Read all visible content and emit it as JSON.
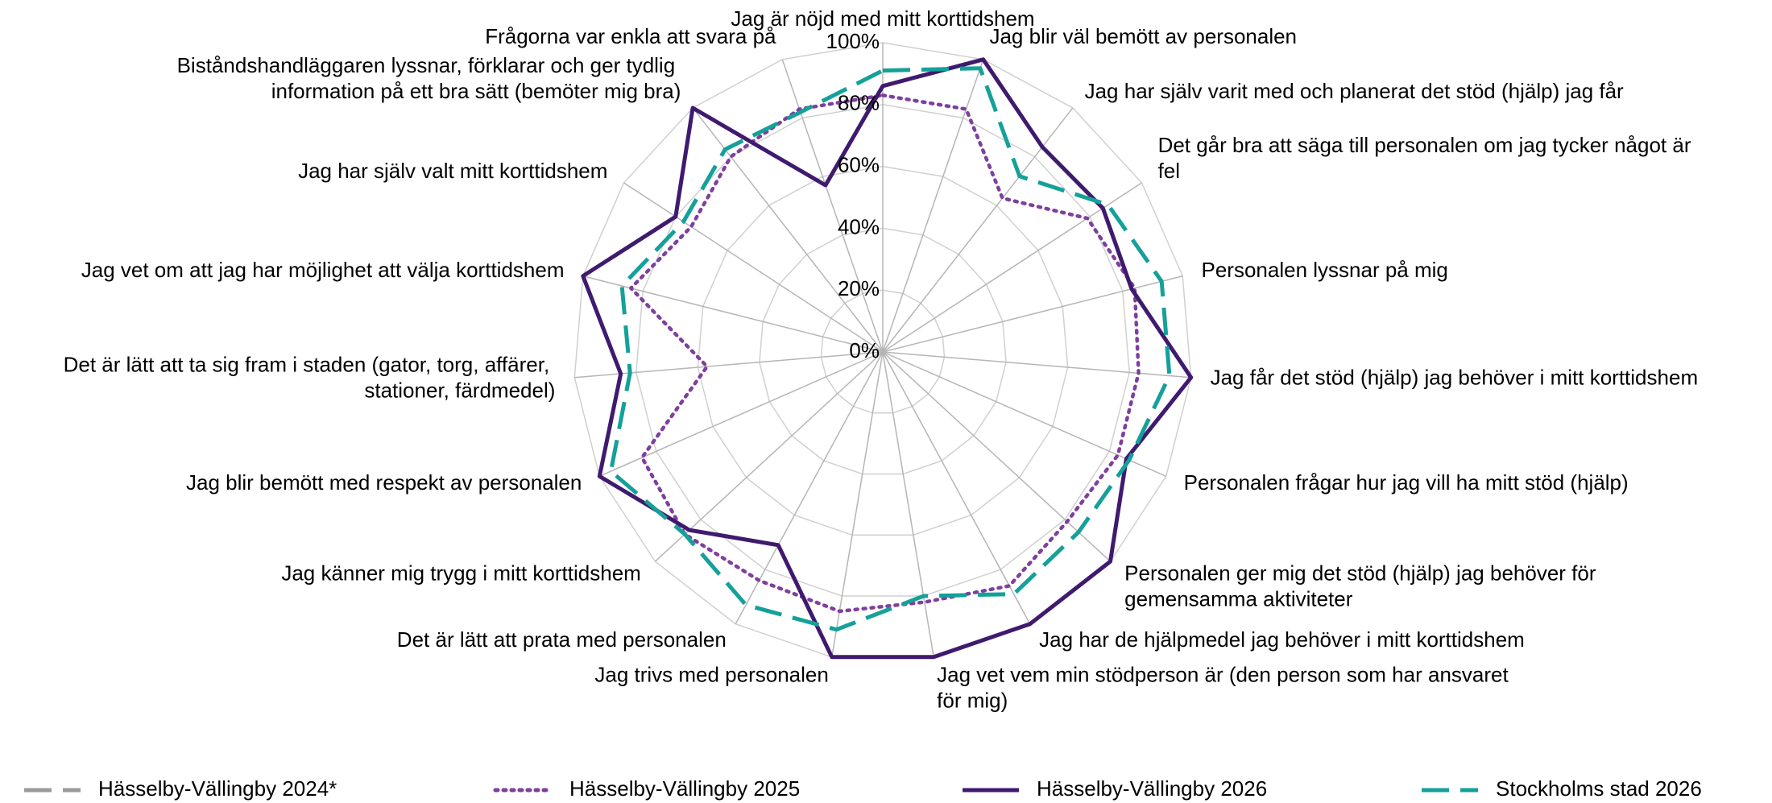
{
  "chart_data": {
    "type": "radar",
    "categories": [
      "Jag är nöjd med mitt korttidshem",
      "Jag blir väl bemött av personalen",
      "Jag har själv varit med och planerat det stöd (hjälp) jag får",
      "Det går bra att säga till personalen om jag tycker något är fel",
      "Personalen lyssnar på mig",
      "Jag får det stöd (hjälp) jag behöver i mitt korttidshem",
      "Personalen frågar hur jag vill ha mitt stöd (hjälp)",
      "Personalen ger mig det stöd (hjälp) jag behöver för gemensamma aktiviteter",
      "Jag har de hjälpmedel jag behöver i mitt korttidshem",
      "Jag vet vem min stödperson är (den person som har ansvaret för mig)",
      "Jag trivs med personalen",
      "Det är lätt att prata med personalen",
      "Jag känner mig trygg i mitt korttidshem",
      "Jag blir bemött med respekt av personalen",
      "Det är lätt att ta sig fram i staden (gator, torg, affärer, stationer, färdmedel)",
      "Jag vet om att jag har möjlighet att välja korttidshem",
      "Jag har själv valt mitt korttidshem",
      "Biståndshandläggaren lyssnar, förklarar och ger tydlig information på ett bra sätt (bemöter mig bra)",
      "Frågorna var enkla att svara på"
    ],
    "series": [
      {
        "name": "Hässelby-Vällingby 2024*",
        "color": "#9a9a9a",
        "dash": "dashed",
        "values": [
          null,
          null,
          null,
          null,
          null,
          null,
          null,
          null,
          null,
          null,
          null,
          null,
          null,
          null,
          null,
          null,
          null,
          null,
          null
        ]
      },
      {
        "name": "Hässelby-Vällingby 2025",
        "color": "#7e3f9e",
        "dash": "dotted",
        "values": [
          83,
          83,
          63,
          79,
          84,
          83,
          83,
          81,
          86,
          82,
          85,
          84,
          87,
          85,
          57,
          84,
          74,
          80,
          83
        ]
      },
      {
        "name": "Hässelby-Vällingby 2026",
        "color": "#3f1a6e",
        "dash": "solid",
        "values": [
          86,
          100,
          84,
          85,
          83,
          100,
          86,
          100,
          100,
          100,
          100,
          71,
          85,
          100,
          85,
          100,
          80,
          100,
          57
        ]
      },
      {
        "name": "Stockholms stad 2026",
        "color": "#15a09a",
        "dash": "dashed",
        "values": [
          91,
          97,
          72,
          87,
          93,
          93,
          87,
          86,
          89,
          80,
          91,
          93,
          87,
          96,
          82,
          87,
          77,
          83,
          82
        ]
      }
    ],
    "ylim": [
      0,
      100
    ],
    "yticks": [
      {
        "value": 0,
        "label": "0%"
      },
      {
        "value": 20,
        "label": "20%"
      },
      {
        "value": 40,
        "label": "40%"
      },
      {
        "value": 60,
        "label": "60%"
      },
      {
        "value": 80,
        "label": "80%"
      },
      {
        "value": 100,
        "label": "100%"
      }
    ],
    "grid": true,
    "legend": "bottom"
  }
}
